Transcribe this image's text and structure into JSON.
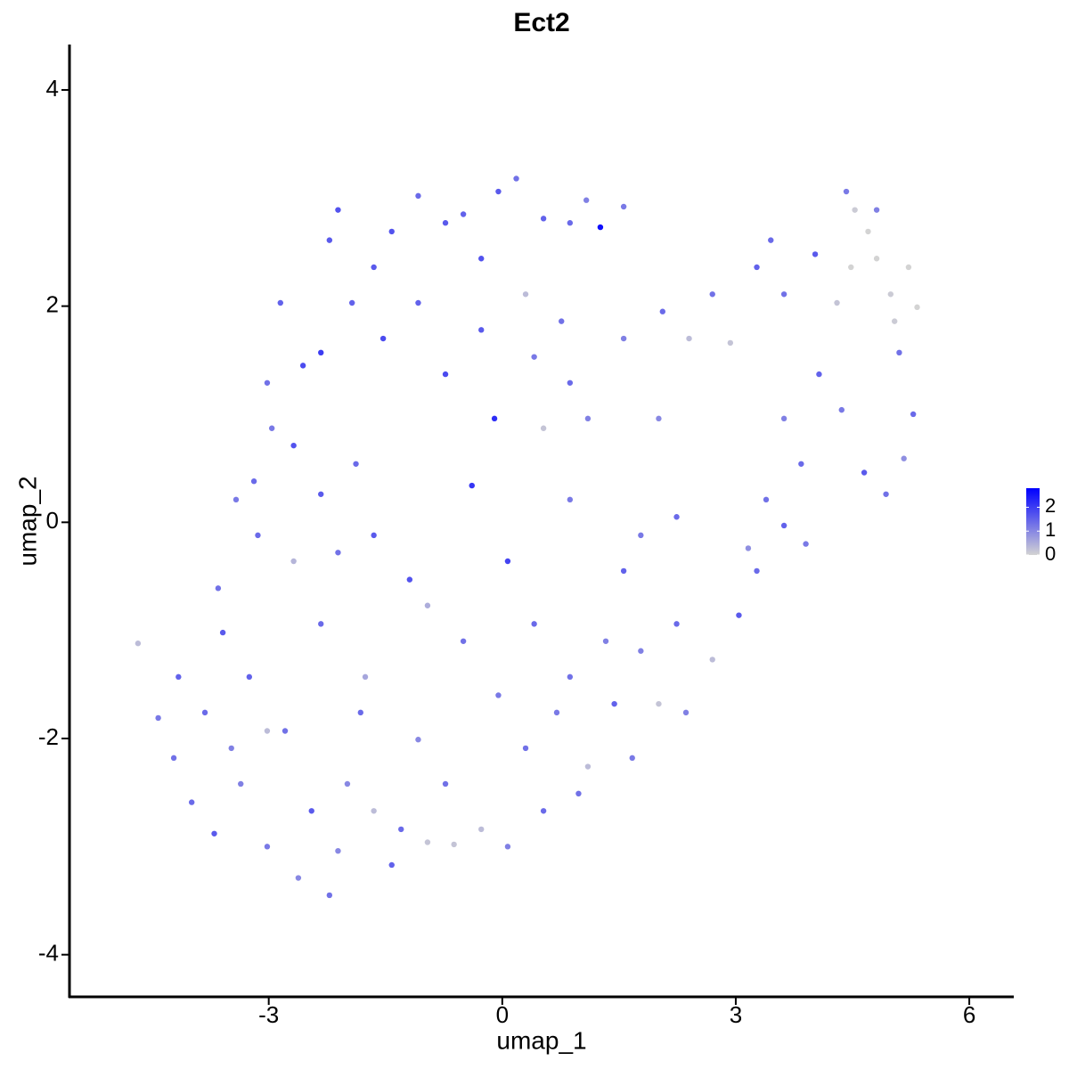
{
  "chart_data": {
    "type": "scatter",
    "title": "Ect2",
    "x_label": "umap_1",
    "y_label": "umap_2",
    "x": [
      -4.68,
      -4.42,
      -4.16,
      -3.99,
      -3.7,
      -3.65,
      -3.42,
      -3.14,
      -3.02,
      -2.85,
      -2.68,
      -2.56,
      -2.11,
      -2.22,
      -2.33,
      -2.22,
      -2.62,
      -3.02,
      -3.48,
      -3.25,
      -2.79,
      -1.99,
      -1.76,
      -1.65,
      -1.88,
      -1.53,
      -1.42,
      -1.08,
      -0.73,
      -0.5,
      -0.05,
      0.18,
      0.53,
      0.87,
      1.26,
      1.56,
      1.08,
      -0.27,
      -1.08,
      -0.73,
      -0.27,
      -0.1,
      0.41,
      0.76,
      1.1,
      0.87,
      0.07,
      -0.39,
      -0.96,
      -1.19,
      -0.5,
      -0.05,
      0.41,
      0.87,
      1.33,
      1.56,
      1.78,
      2.24,
      2.01,
      1.56,
      2.06,
      2.4,
      2.7,
      2.93,
      3.27,
      3.45,
      3.62,
      4.02,
      4.3,
      4.42,
      4.53,
      4.7,
      4.81,
      4.99,
      5.22,
      5.33,
      5.04,
      4.48,
      4.81,
      5.1,
      5.28,
      5.16,
      4.93,
      4.65,
      4.36,
      4.07,
      3.84,
      3.62,
      3.39,
      3.62,
      3.9,
      3.27,
      3.04,
      2.7,
      2.36,
      2.01,
      1.67,
      1.1,
      0.98,
      0.53,
      0.07,
      -0.27,
      -0.62,
      -0.96,
      -1.3,
      -1.42,
      -1.65,
      -1.08,
      -0.73,
      0.3,
      0.7,
      1.44,
      1.78,
      2.24,
      3.16,
      0.87,
      0.53,
      0.3,
      -1.65,
      -1.93,
      -2.33,
      -2.96,
      -3.19,
      -2.68,
      -2.11,
      -2.33,
      -3.59,
      -3.82,
      -4.22,
      -3.36,
      -2.45,
      -2.11,
      -3.02,
      -1.82
    ],
    "y": [
      -1.12,
      -1.81,
      -1.43,
      -2.59,
      -2.88,
      -0.61,
      0.21,
      -0.12,
      1.29,
      2.03,
      0.71,
      1.45,
      2.89,
      2.61,
      -0.94,
      -3.45,
      -3.29,
      -3.0,
      -2.09,
      -1.43,
      -1.93,
      -2.42,
      -1.43,
      -0.12,
      0.54,
      1.7,
      2.69,
      3.02,
      2.77,
      2.85,
      3.06,
      3.18,
      2.81,
      2.77,
      2.73,
      2.92,
      2.98,
      2.44,
      2.03,
      1.37,
      1.78,
      0.96,
      1.53,
      1.86,
      0.96,
      0.21,
      -0.36,
      0.34,
      -0.77,
      -0.53,
      -1.1,
      -1.6,
      -0.94,
      -1.43,
      -1.1,
      -0.45,
      -0.12,
      0.05,
      0.96,
      1.7,
      1.95,
      1.7,
      2.11,
      1.66,
      2.36,
      2.61,
      2.11,
      2.48,
      2.03,
      3.06,
      2.89,
      2.69,
      2.44,
      2.11,
      2.36,
      1.99,
      1.86,
      2.36,
      2.89,
      1.57,
      1.0,
      0.59,
      0.26,
      0.46,
      1.04,
      1.37,
      0.54,
      0.96,
      0.21,
      -0.03,
      -0.2,
      -0.45,
      -0.86,
      -1.27,
      -1.76,
      -1.68,
      -2.18,
      -2.26,
      -2.51,
      -2.67,
      -3.0,
      -2.84,
      -2.98,
      -2.96,
      -2.84,
      -3.17,
      -2.67,
      -2.01,
      -2.42,
      -2.09,
      -1.76,
      -1.68,
      -1.19,
      -0.94,
      -0.24,
      1.29,
      0.87,
      2.11,
      2.36,
      2.03,
      1.57,
      0.87,
      0.38,
      -0.36,
      -0.28,
      0.26,
      -1.02,
      -1.76,
      -2.18,
      -2.42,
      -2.67,
      -3.04,
      -1.93,
      -1.76
    ],
    "values": [
      0.3,
      1.2,
      1.5,
      1.4,
      1.6,
      1.3,
      1.2,
      1.4,
      1.3,
      1.5,
      1.7,
      1.8,
      1.7,
      1.6,
      1.4,
      1.3,
      1.0,
      1.2,
      1.1,
      1.5,
      1.3,
      1.0,
      0.6,
      1.6,
      1.4,
      1.8,
      1.7,
      1.4,
      1.6,
      1.5,
      1.6,
      1.3,
      1.5,
      1.4,
      2.6,
      1.2,
      1.1,
      1.7,
      1.5,
      1.8,
      1.6,
      2.2,
      1.2,
      1.3,
      1.1,
      1.2,
      1.9,
      2.1,
      0.5,
      1.7,
      1.3,
      1.2,
      1.4,
      1.3,
      1.1,
      1.5,
      1.2,
      1.4,
      1.0,
      1.1,
      1.4,
      0.3,
      1.3,
      0.2,
      1.5,
      1.4,
      1.3,
      1.6,
      0.2,
      1.2,
      0.1,
      0.0,
      0.0,
      0.1,
      0.0,
      0.0,
      0.1,
      0.0,
      1.1,
      1.3,
      1.4,
      0.9,
      1.3,
      1.6,
      1.2,
      1.5,
      1.4,
      1.1,
      1.3,
      1.5,
      1.2,
      1.4,
      1.6,
      0.3,
      1.1,
      0.2,
      1.2,
      0.3,
      1.3,
      1.4,
      1.1,
      0.3,
      0.2,
      0.2,
      1.4,
      1.5,
      0.3,
      1.0,
      1.3,
      1.3,
      1.2,
      1.5,
      1.1,
      1.4,
      0.9,
      1.4,
      0.2,
      0.3,
      1.6,
      1.5,
      2.0,
      1.2,
      1.4,
      0.4,
      1.3,
      1.6,
      1.6,
      1.4,
      1.3,
      1.1,
      1.6,
      1.0,
      0.3,
      1.4
    ],
    "xlim": [
      -5.56,
      6.56
    ],
    "ylim": [
      -4.39,
      4.42
    ],
    "xticks": [
      -3,
      0,
      3,
      6
    ],
    "yticks": [
      -4,
      -2,
      0,
      2,
      4
    ],
    "color_scale": {
      "low": "#d3d3d3",
      "high": "#0000ff",
      "limits": [
        0,
        2.8
      ],
      "ticks": [
        0,
        1,
        2
      ]
    }
  }
}
